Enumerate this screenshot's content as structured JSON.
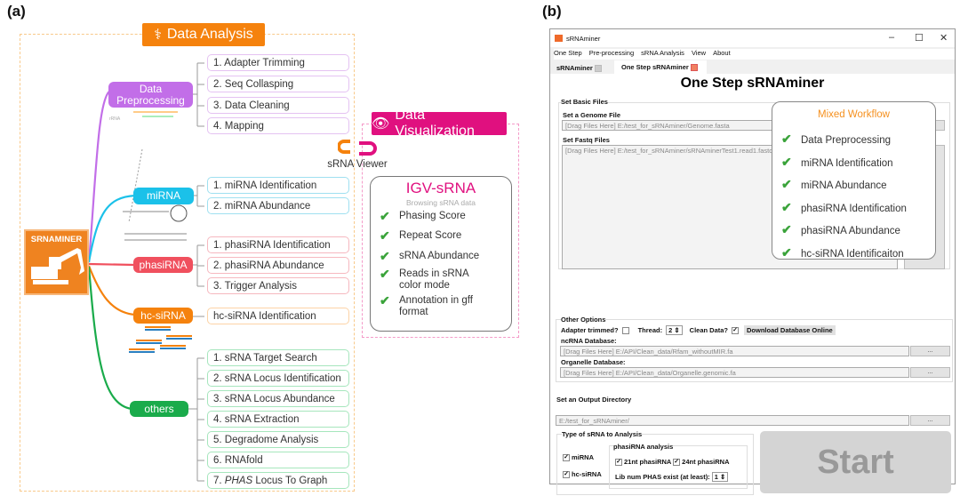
{
  "panel_a": {
    "label": "(a)",
    "data_analysis": {
      "title": "Data Analysis",
      "icon": "dna-icon",
      "logo_text": "SRNAMINER",
      "rrna_label": "rRNA",
      "branches": [
        {
          "label": "Data Preprocessing",
          "color": "#c26ee8",
          "items": [
            "1. Adapter Trimming",
            "2. Seq Collasping",
            "3. Data Cleaning",
            "4. Mapping"
          ]
        },
        {
          "label": "miRNA",
          "color": "#1bc1e9",
          "items": [
            "1. miRNA Identification",
            "2. miRNA Abundance"
          ]
        },
        {
          "label": "phasiRNA",
          "color": "#f0505e",
          "items": [
            "1. phasiRNA Identification",
            "2. phasiRNA Abundance",
            "3. Trigger Analysis"
          ]
        },
        {
          "label": "hc-siRNA",
          "color": "#f5820d",
          "items": [
            "hc-siRNA Identification"
          ]
        },
        {
          "label": "others",
          "color": "#1aab4b",
          "items": [
            "1. sRNA Target Search",
            "2. sRNA Locus Identification",
            "3. sRNA Locus Abundance",
            "4. sRNA Extraction",
            "5. Degradome Analysis",
            "6. RNAfold"
          ],
          "last_item_italic": "PHAS",
          "last_item_prefix": "7. ",
          "last_item_suffix": " Locus To Graph"
        }
      ]
    },
    "data_visualization": {
      "title": "Data Visualization",
      "icon": "eye-icon",
      "viewer_label": "sRNA Viewer",
      "igv": {
        "title": "IGV-sRNA",
        "subtitle": "Browsing sRNA data",
        "features": [
          "Phasing Score",
          "Repeat Score",
          "sRNA Abundance",
          "Reads in sRNA color mode",
          "Annotation in gff format"
        ]
      }
    }
  },
  "panel_b": {
    "label": "(b)",
    "window_title": "sRNAminer",
    "menu": [
      "One Step",
      "Pre-processing",
      "sRNA Analysis",
      "View",
      "About"
    ],
    "tabs": [
      "sRNAminer",
      "One Step sRNAminer"
    ],
    "heading": "One Step sRNAminer",
    "basic_files": {
      "group": "Set Basic Files",
      "genome_label": "Set a Genome File",
      "genome_value": "[Drag Files Here] E:/test_for_sRNAminer/Genome.fasta",
      "fastq_label": "Set Fastq Files",
      "fastq_value": "[Drag Files Here] E:/test_for_sRNAminer/sRNAminerTest1.read1.fastq",
      "browse": "..."
    },
    "mixed_workflow": {
      "title": "Mixed Workflow",
      "items": [
        "Data Preprocessing",
        "miRNA Identification",
        "miRNA Abundance",
        "phasiRNA Identification",
        "phasiRNA Abundance",
        "hc-siRNA Identificaiton"
      ]
    },
    "other_options": {
      "group": "Other Options",
      "adapter_label": "Adapter trimmed?",
      "thread_label": "Thread:",
      "thread_value": "2",
      "clean_label": "Clean Data?",
      "download_button": "Download Database Online",
      "ncrna_label": "ncRNA Database:",
      "ncrna_value": "[Drag Files Here] E:/API/Clean_data/Rfam_withoutMIR.fa",
      "organelle_label": "Organelle Database:",
      "organelle_value": "[Drag Files Here] E:/API/Clean_data/Organelle.genomic.fa"
    },
    "output": {
      "label": "Set an Output Directory",
      "value": "E:/test_for_sRNAminer/"
    },
    "srna_types": {
      "group": "Type of sRNA to Analysis",
      "mirna": "miRNA",
      "hcsirna": "hc-siRNA",
      "phasi_group": "phasiRNA analysis",
      "nt21": "21nt phasiRNA",
      "nt24": "24nt phasiRNA",
      "lib_label": "Lib num PHAS exist (at least):",
      "lib_value": "1"
    },
    "start_button": "Start"
  }
}
